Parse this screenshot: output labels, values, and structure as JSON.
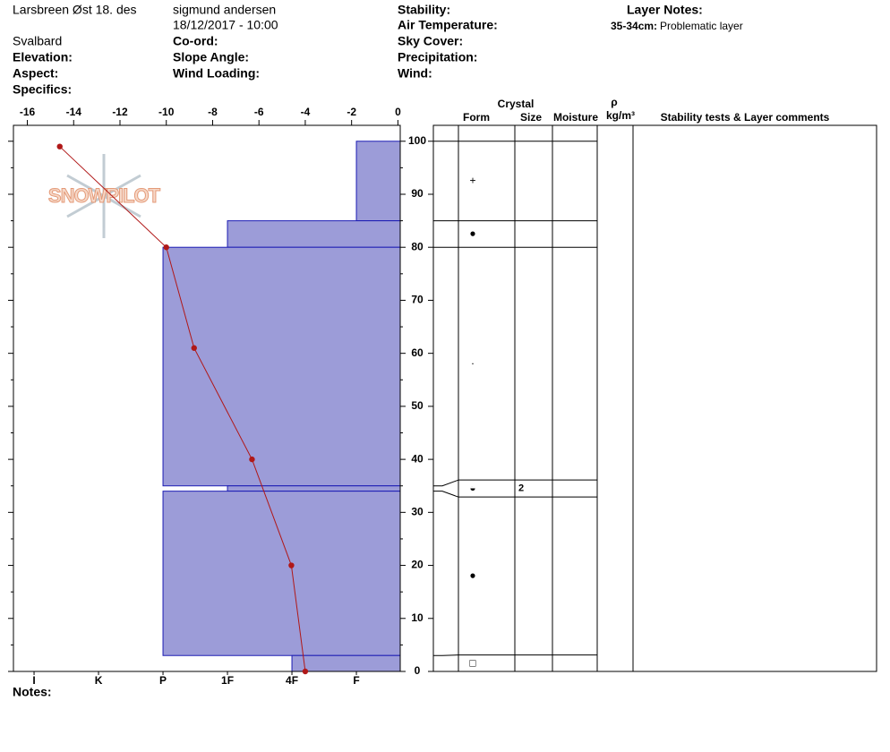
{
  "header": {
    "location": "Larsbreen Øst 18. des",
    "region": "Svalbard",
    "elevation": "Elevation:",
    "aspect": "Aspect:",
    "specifics": "Specifics:",
    "observer": "sigmund andersen",
    "datetime": "18/12/2017 - 10:00",
    "coord": "Co-ord:",
    "slope_angle": "Slope Angle:",
    "wind_loading": "Wind Loading:",
    "stability": "Stability:",
    "air_temperature": "Air Temperature:",
    "sky_cover": "Sky Cover:",
    "precipitation": "Precipitation:",
    "wind": "Wind:",
    "layer_notes_title": "Layer Notes:",
    "layer_notes": [
      {
        "range": "35-34cm:",
        "text": "Problematic layer"
      }
    ]
  },
  "notes_label": "Notes:",
  "chart_data": {
    "type": "snow-profile",
    "logo": "SNOWPILOT",
    "xlim": [
      -16.6,
      0.1
    ],
    "xticks": [
      -16,
      -14,
      -12,
      -10,
      -8,
      -6,
      -4,
      -2,
      0
    ],
    "ylim": [
      0,
      103
    ],
    "yticks": [
      0,
      10,
      20,
      30,
      40,
      50,
      60,
      70,
      80,
      90,
      100
    ],
    "yminorticks": [
      5,
      15,
      25,
      35,
      45,
      55,
      65,
      75,
      85,
      95
    ],
    "hardness_lim": [
      6.32,
      0.32
    ],
    "hardness_ticks": [
      {
        "value": 6,
        "label": "I"
      },
      {
        "value": 5,
        "label": "K"
      },
      {
        "value": 4,
        "label": "P"
      },
      {
        "value": 3,
        "label": "1F"
      },
      {
        "value": 2,
        "label": "4F"
      },
      {
        "value": 1,
        "label": "F"
      }
    ],
    "layers": {
      "color": "#9c9cd8",
      "edge_color": "#1c1cb4",
      "top": [
        100,
        85,
        80,
        35,
        34,
        3
      ],
      "bottom": [
        85,
        80,
        35,
        34,
        3,
        0
      ],
      "hardness": [
        1,
        3,
        4,
        3,
        4,
        2
      ],
      "form": [
        "+",
        "●",
        "·",
        "◒",
        "●",
        "□"
      ],
      "size": [
        null,
        null,
        null,
        2,
        null,
        null
      ]
    },
    "temperature": {
      "color": "#b01818",
      "height": [
        99,
        80,
        61,
        40,
        20,
        0
      ],
      "values": [
        -14.6,
        -10,
        -8.8,
        -6.3,
        -4.6,
        -4.0
      ]
    },
    "columns": {
      "crystal": "Crystal",
      "form": "Form",
      "size": "Size",
      "moisture": "Moisture",
      "rho": "ρ",
      "density_unit": "kg/m³",
      "comments": "Stability tests & Layer comments"
    }
  }
}
